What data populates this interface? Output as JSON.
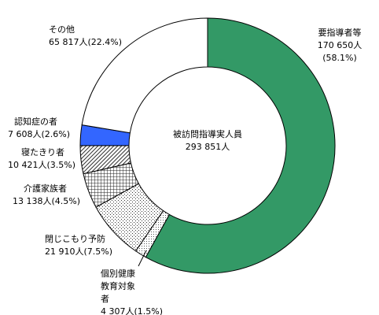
{
  "chart_data": {
    "type": "donut",
    "center_title": "被訪問指導実人員",
    "total": 293851,
    "total_label": "293 851人",
    "series": [
      {
        "name": "要指導者等",
        "value": 170650,
        "value_label": "170 650人",
        "percent": 58.1,
        "percent_label": "(58.1%)",
        "color": "#339966"
      },
      {
        "name": "個別健康教育対象者",
        "value": 4307,
        "value_label": "4 307人",
        "percent": 1.5,
        "percent_label": "(1.5%)",
        "color": "#ffffff",
        "pattern": "fine-dots"
      },
      {
        "name": "閉じこもり予防",
        "value": 21910,
        "value_label": "21 910人",
        "percent": 7.5,
        "percent_label": "(7.5%)",
        "color": "#ffffff",
        "pattern": "dots"
      },
      {
        "name": "介護家族者",
        "value": 13138,
        "value_label": "13 138人",
        "percent": 4.5,
        "percent_label": "(4.5%)",
        "color": "#ffffff",
        "pattern": "grid"
      },
      {
        "name": "寝たきり者",
        "value": 10421,
        "value_label": "10 421人",
        "percent": 3.5,
        "percent_label": "(3.5%)",
        "color": "#ffffff",
        "pattern": "hatch"
      },
      {
        "name": "認知症の者",
        "value": 7608,
        "value_label": "7 608人",
        "percent": 2.6,
        "percent_label": "(2.6%)",
        "color": "#3366ff"
      },
      {
        "name": "その他",
        "value": 65817,
        "value_label": "65 817人",
        "percent": 22.4,
        "percent_label": "(22.4%)",
        "color": "#ffffff"
      }
    ]
  }
}
